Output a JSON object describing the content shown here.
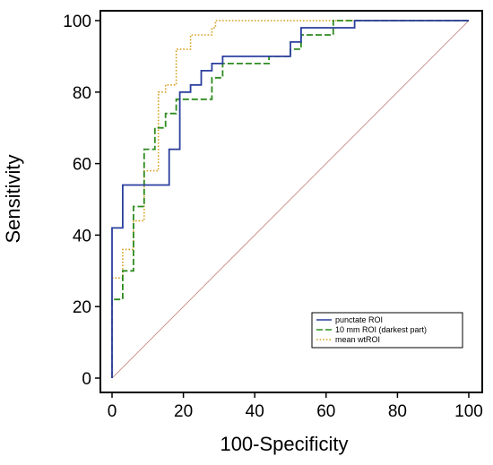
{
  "chart_data": {
    "type": "line",
    "title": "",
    "xlabel": "100-Specificity",
    "ylabel": "Sensitivity",
    "xlim": [
      0,
      100
    ],
    "ylim": [
      0,
      100
    ],
    "x_ticks": [
      "0",
      "20",
      "40",
      "60",
      "80",
      "100"
    ],
    "y_ticks": [
      "0",
      "20",
      "40",
      "60",
      "80",
      "100"
    ],
    "grid": false,
    "legend_position": "bottom-right",
    "reference_line": {
      "x": [
        0,
        100
      ],
      "y": [
        0,
        100
      ],
      "color": "#c88a8a"
    },
    "series": [
      {
        "name": "punctate ROI",
        "color": "#2b3f9e",
        "dash": "solid",
        "x": [
          0,
          0,
          3,
          3,
          16,
          16,
          19,
          19,
          22,
          22,
          25,
          25,
          28,
          28,
          31,
          31,
          50,
          50,
          53,
          53,
          68,
          68,
          100
        ],
        "y": [
          0,
          42,
          42,
          54,
          54,
          64,
          64,
          80,
          80,
          82,
          82,
          86,
          86,
          88,
          88,
          90,
          90,
          94,
          94,
          98,
          98,
          100,
          100
        ]
      },
      {
        "name": "10 mm ROI (darkest part)",
        "color": "#2e8b1f",
        "dash": "dashed",
        "x": [
          0,
          0,
          3,
          3,
          6,
          6,
          9,
          9,
          12,
          12,
          15,
          15,
          18,
          18,
          28,
          28,
          31,
          31,
          44,
          44,
          50,
          50,
          53,
          53,
          62,
          62,
          100
        ],
        "y": [
          0,
          22,
          22,
          30,
          30,
          48,
          48,
          64,
          64,
          70,
          70,
          74,
          74,
          78,
          78,
          84,
          84,
          88,
          88,
          90,
          90,
          92,
          92,
          96,
          96,
          100,
          100
        ]
      },
      {
        "name": "mean wtROI",
        "color": "#d6a020",
        "dash": "dotted",
        "x": [
          0,
          0,
          3,
          3,
          6,
          6,
          9,
          9,
          13,
          13,
          15,
          15,
          18,
          18,
          22,
          22,
          28,
          28,
          29,
          29,
          100
        ],
        "y": [
          0,
          28,
          28,
          36,
          36,
          44,
          44,
          58,
          58,
          80,
          80,
          82,
          82,
          92,
          92,
          96,
          96,
          98,
          98,
          100,
          100
        ]
      }
    ]
  }
}
